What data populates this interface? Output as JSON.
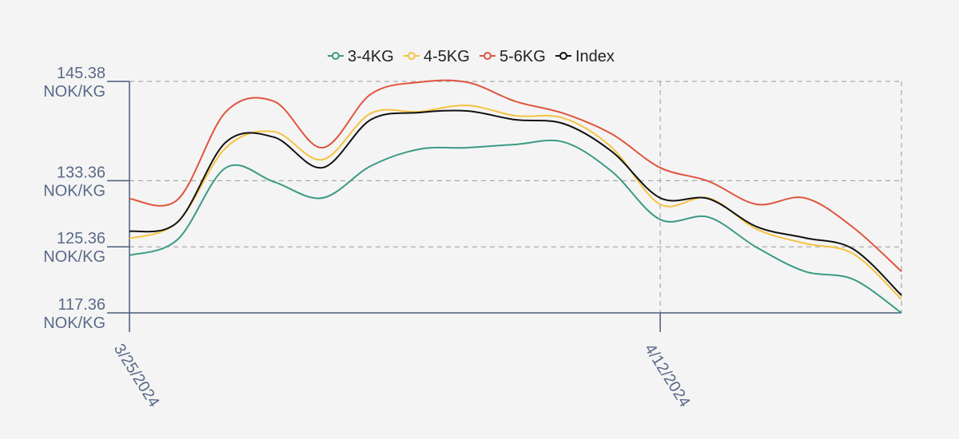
{
  "chart_data": {
    "type": "line",
    "categories": [
      "3/25/2024",
      null,
      null,
      null,
      null,
      null,
      null,
      null,
      null,
      null,
      null,
      "4/12/2024",
      null,
      null,
      null,
      null,
      null
    ],
    "series": [
      {
        "name": "3-4KG",
        "color": "#3a9a85",
        "values": [
          124.32,
          126.25,
          134.94,
          133.21,
          131.27,
          135.14,
          137.17,
          137.36,
          137.75,
          138.04,
          134.46,
          128.66,
          128.95,
          125.28,
          122.38,
          121.42,
          117.36
        ]
      },
      {
        "name": "4-5KG",
        "color": "#f5c342",
        "values": [
          126.35,
          128.37,
          137.36,
          139.29,
          135.91,
          141.51,
          141.71,
          142.48,
          141.22,
          140.93,
          137.36,
          130.5,
          131.27,
          127.5,
          125.77,
          124.51,
          119.0
        ]
      },
      {
        "name": "5-6KG",
        "color": "#e0533d",
        "values": [
          131.18,
          131.08,
          141.71,
          142.96,
          137.36,
          143.83,
          145.28,
          145.28,
          142.96,
          141.51,
          139.0,
          134.94,
          133.3,
          130.5,
          131.27,
          127.7,
          122.38
        ]
      },
      {
        "name": "Index",
        "color": "#111111",
        "values": [
          127.22,
          128.37,
          138.04,
          138.62,
          134.94,
          140.74,
          141.61,
          141.8,
          140.74,
          140.26,
          136.88,
          131.27,
          131.18,
          127.79,
          126.44,
          125.09,
          119.49
        ]
      }
    ],
    "ylim": [
      117.36,
      145.38
    ],
    "yticks": [
      {
        "value": 117.36,
        "label": "117.36\nNOK/KG"
      },
      {
        "value": 125.36,
        "label": "125.36\nNOK/KG"
      },
      {
        "value": 133.36,
        "label": "133.36\nNOK/KG"
      },
      {
        "value": 145.38,
        "label": "145.38\nNOK/KG"
      }
    ],
    "grid": true,
    "legend": "top"
  }
}
